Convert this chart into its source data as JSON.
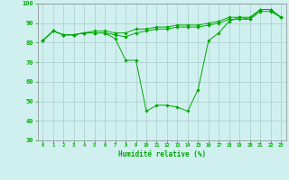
{
  "x": [
    0,
    1,
    2,
    3,
    4,
    5,
    6,
    7,
    8,
    9,
    10,
    11,
    12,
    13,
    14,
    15,
    16,
    17,
    18,
    19,
    20,
    21,
    22,
    23
  ],
  "y_main": [
    81,
    86,
    84,
    84,
    85,
    85,
    85,
    82,
    71,
    71,
    45,
    48,
    48,
    47,
    45,
    56,
    81,
    85,
    91,
    93,
    92,
    97,
    97,
    93
  ],
  "y_upper": [
    81,
    86,
    84,
    84,
    85,
    86,
    86,
    85,
    85,
    87,
    87,
    88,
    88,
    89,
    89,
    89,
    90,
    91,
    93,
    93,
    93,
    97,
    97,
    93
  ],
  "y_lower": [
    81,
    86,
    84,
    84,
    85,
    85,
    85,
    84,
    83,
    85,
    86,
    87,
    87,
    88,
    88,
    88,
    89,
    90,
    92,
    92,
    92,
    96,
    96,
    93
  ],
  "line_color": "#00aa00",
  "bg_color": "#d0f0f0",
  "grid_color": "#aacccc",
  "xlabel": "Humidité relative (%)",
  "ylim": [
    30,
    100
  ],
  "xlim_min": -0.5,
  "xlim_max": 23.5,
  "yticks": [
    30,
    40,
    50,
    60,
    70,
    80,
    90,
    100
  ],
  "xticks": [
    0,
    1,
    2,
    3,
    4,
    5,
    6,
    7,
    8,
    9,
    10,
    11,
    12,
    13,
    14,
    15,
    16,
    17,
    18,
    19,
    20,
    21,
    22,
    23
  ]
}
